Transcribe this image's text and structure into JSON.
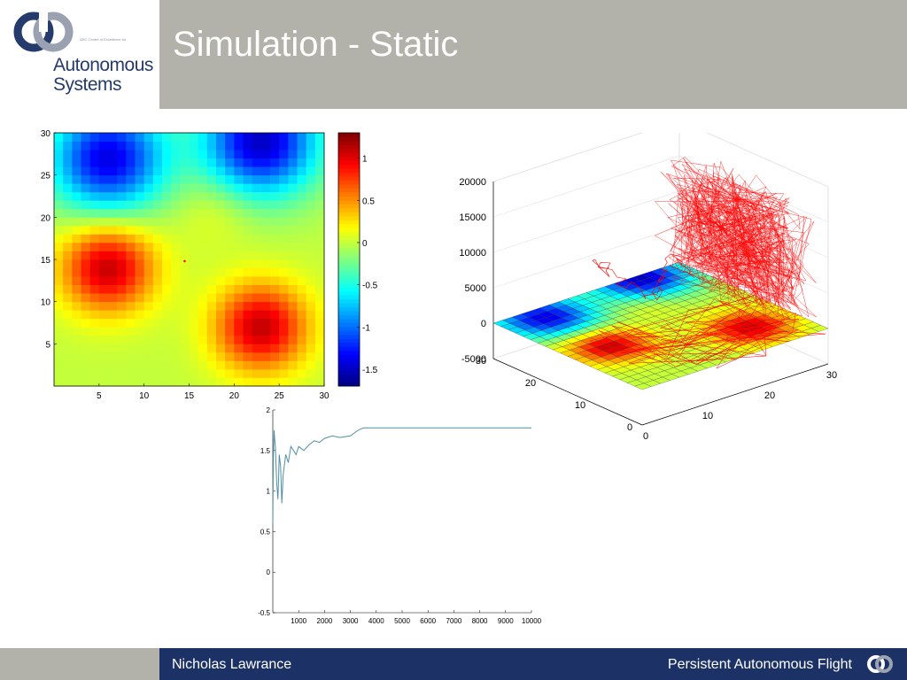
{
  "slide": {
    "title": "Simulation - Static",
    "logo": {
      "small_text": "ARC Centre of Excellence for",
      "line1": "Autonomous",
      "line2": "Systems"
    },
    "footer": {
      "author": "Nicholas Lawrance",
      "talk": "Persistent Autonomous Flight"
    }
  },
  "chart_data": [
    {
      "type": "heatmap",
      "xticks": [
        "5",
        "10",
        "15",
        "20",
        "25",
        "30"
      ],
      "yticks": [
        "5",
        "10",
        "15",
        "20",
        "25",
        "30"
      ],
      "xlim": [
        0,
        30
      ],
      "ylim": [
        0,
        30
      ],
      "grid": false,
      "features": [
        {
          "x": 6,
          "y": 27,
          "value": -1.4
        },
        {
          "x": 23,
          "y": 29,
          "value": -1.5
        },
        {
          "x": 18,
          "y": 21,
          "value": 0.15
        },
        {
          "x": 6,
          "y": 14,
          "value": 1.1
        },
        {
          "x": 23,
          "y": 7,
          "value": 1.1
        }
      ],
      "colorbar": {
        "ticks": [
          "1",
          "0.5",
          "0",
          "-0.5",
          "-1",
          "-1.5"
        ],
        "range": [
          -1.7,
          1.3
        ]
      }
    },
    {
      "type": "line",
      "dimension": "3d",
      "xticks": [
        "0",
        "10",
        "20",
        "30"
      ],
      "yticks": [
        "0",
        "10",
        "20",
        "30"
      ],
      "zticks": [
        "-5000",
        "0",
        "5000",
        "10000",
        "15000",
        "20000"
      ],
      "zlim": [
        -5000,
        20000
      ],
      "grid": true
    },
    {
      "type": "line",
      "xticks": [
        "1000",
        "2000",
        "3000",
        "4000",
        "5000",
        "6000",
        "7000",
        "8000",
        "9000",
        "10000"
      ],
      "yticks": [
        "2",
        "1.5",
        "1",
        "0.5",
        "0",
        "-0.5"
      ],
      "xlim": [
        0,
        10000
      ],
      "ylim": [
        -0.5,
        2
      ],
      "series": [
        {
          "x": [
            0,
            20,
            50,
            70,
            100,
            150,
            200,
            250,
            300,
            350,
            400,
            500,
            600,
            700,
            800,
            900,
            1000,
            1200,
            1400,
            1600,
            1800,
            2000,
            2300,
            2600,
            3000,
            3300,
            3500,
            4000,
            5000,
            6000,
            7000,
            8000,
            9000,
            10000
          ],
          "y": [
            0.6,
            1.4,
            1.75,
            1.65,
            1.55,
            1.1,
            0.9,
            1.45,
            1.3,
            0.85,
            1.2,
            1.45,
            1.35,
            1.55,
            1.5,
            1.45,
            1.55,
            1.5,
            1.57,
            1.62,
            1.6,
            1.65,
            1.68,
            1.66,
            1.68,
            1.75,
            1.78,
            1.78,
            1.78,
            1.78,
            1.78,
            1.78,
            1.78,
            1.78
          ]
        }
      ]
    }
  ]
}
